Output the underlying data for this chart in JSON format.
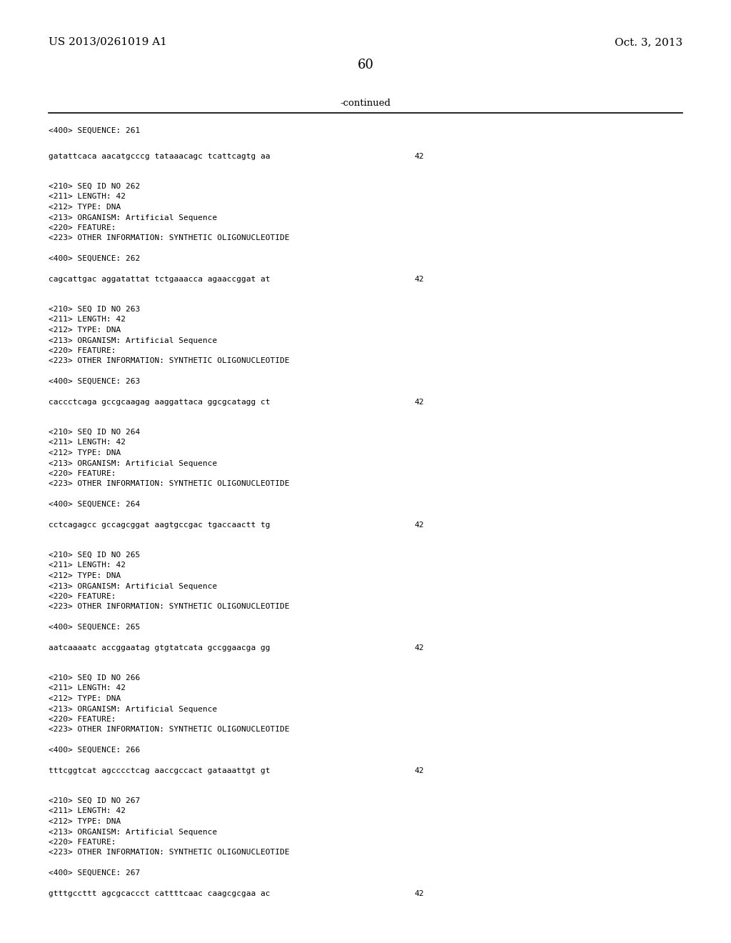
{
  "header_left": "US 2013/0261019 A1",
  "header_right": "Oct. 3, 2013",
  "page_number": "60",
  "continued_text": "-continued",
  "background_color": "#ffffff",
  "text_color": "#000000",
  "content_blocks": [
    {
      "type": "seq400_only",
      "seq400": "<400> SEQUENCE: 261",
      "seq_text": "gatattcaca aacatgcccg tataaacagc tcattcagtg aa",
      "seq_num": "42"
    },
    {
      "type": "full_block",
      "info": [
        "<210> SEQ ID NO 262",
        "<211> LENGTH: 42",
        "<212> TYPE: DNA",
        "<213> ORGANISM: Artificial Sequence",
        "<220> FEATURE:",
        "<223> OTHER INFORMATION: SYNTHETIC OLIGONUCLEOTIDE"
      ],
      "seq400": "<400> SEQUENCE: 262",
      "seq_text": "cagcattgac aggatattat tctgaaacca agaaccggat at",
      "seq_num": "42"
    },
    {
      "type": "full_block",
      "info": [
        "<210> SEQ ID NO 263",
        "<211> LENGTH: 42",
        "<212> TYPE: DNA",
        "<213> ORGANISM: Artificial Sequence",
        "<220> FEATURE:",
        "<223> OTHER INFORMATION: SYNTHETIC OLIGONUCLEOTIDE"
      ],
      "seq400": "<400> SEQUENCE: 263",
      "seq_text": "caccctcaga gccgcaagag aaggattaca ggcgcatagg ct",
      "seq_num": "42"
    },
    {
      "type": "full_block",
      "info": [
        "<210> SEQ ID NO 264",
        "<211> LENGTH: 42",
        "<212> TYPE: DNA",
        "<213> ORGANISM: Artificial Sequence",
        "<220> FEATURE:",
        "<223> OTHER INFORMATION: SYNTHETIC OLIGONUCLEOTIDE"
      ],
      "seq400": "<400> SEQUENCE: 264",
      "seq_text": "cctcagagcc gccagcggat aagtgccgac tgaccaactt tg",
      "seq_num": "42"
    },
    {
      "type": "full_block",
      "info": [
        "<210> SEQ ID NO 265",
        "<211> LENGTH: 42",
        "<212> TYPE: DNA",
        "<213> ORGANISM: Artificial Sequence",
        "<220> FEATURE:",
        "<223> OTHER INFORMATION: SYNTHETIC OLIGONUCLEOTIDE"
      ],
      "seq400": "<400> SEQUENCE: 265",
      "seq_text": "aatcaaaatc accggaatag gtgtatcata gccggaacga gg",
      "seq_num": "42"
    },
    {
      "type": "full_block",
      "info": [
        "<210> SEQ ID NO 266",
        "<211> LENGTH: 42",
        "<212> TYPE: DNA",
        "<213> ORGANISM: Artificial Sequence",
        "<220> FEATURE:",
        "<223> OTHER INFORMATION: SYNTHETIC OLIGONUCLEOTIDE"
      ],
      "seq400": "<400> SEQUENCE: 266",
      "seq_text": "tttcggtcat agcccctcag aaccgccact gataaattgt gt",
      "seq_num": "42"
    },
    {
      "type": "full_block",
      "info": [
        "<210> SEQ ID NO 267",
        "<211> LENGTH: 42",
        "<212> TYPE: DNA",
        "<213> ORGANISM: Artificial Sequence",
        "<220> FEATURE:",
        "<223> OTHER INFORMATION: SYNTHETIC OLIGONUCLEOTIDE"
      ],
      "seq400": "<400> SEQUENCE: 267",
      "seq_text": "gtttgccttt agcgcaccct cattttcaac caagcgcgaa ac",
      "seq_num": "42"
    }
  ]
}
